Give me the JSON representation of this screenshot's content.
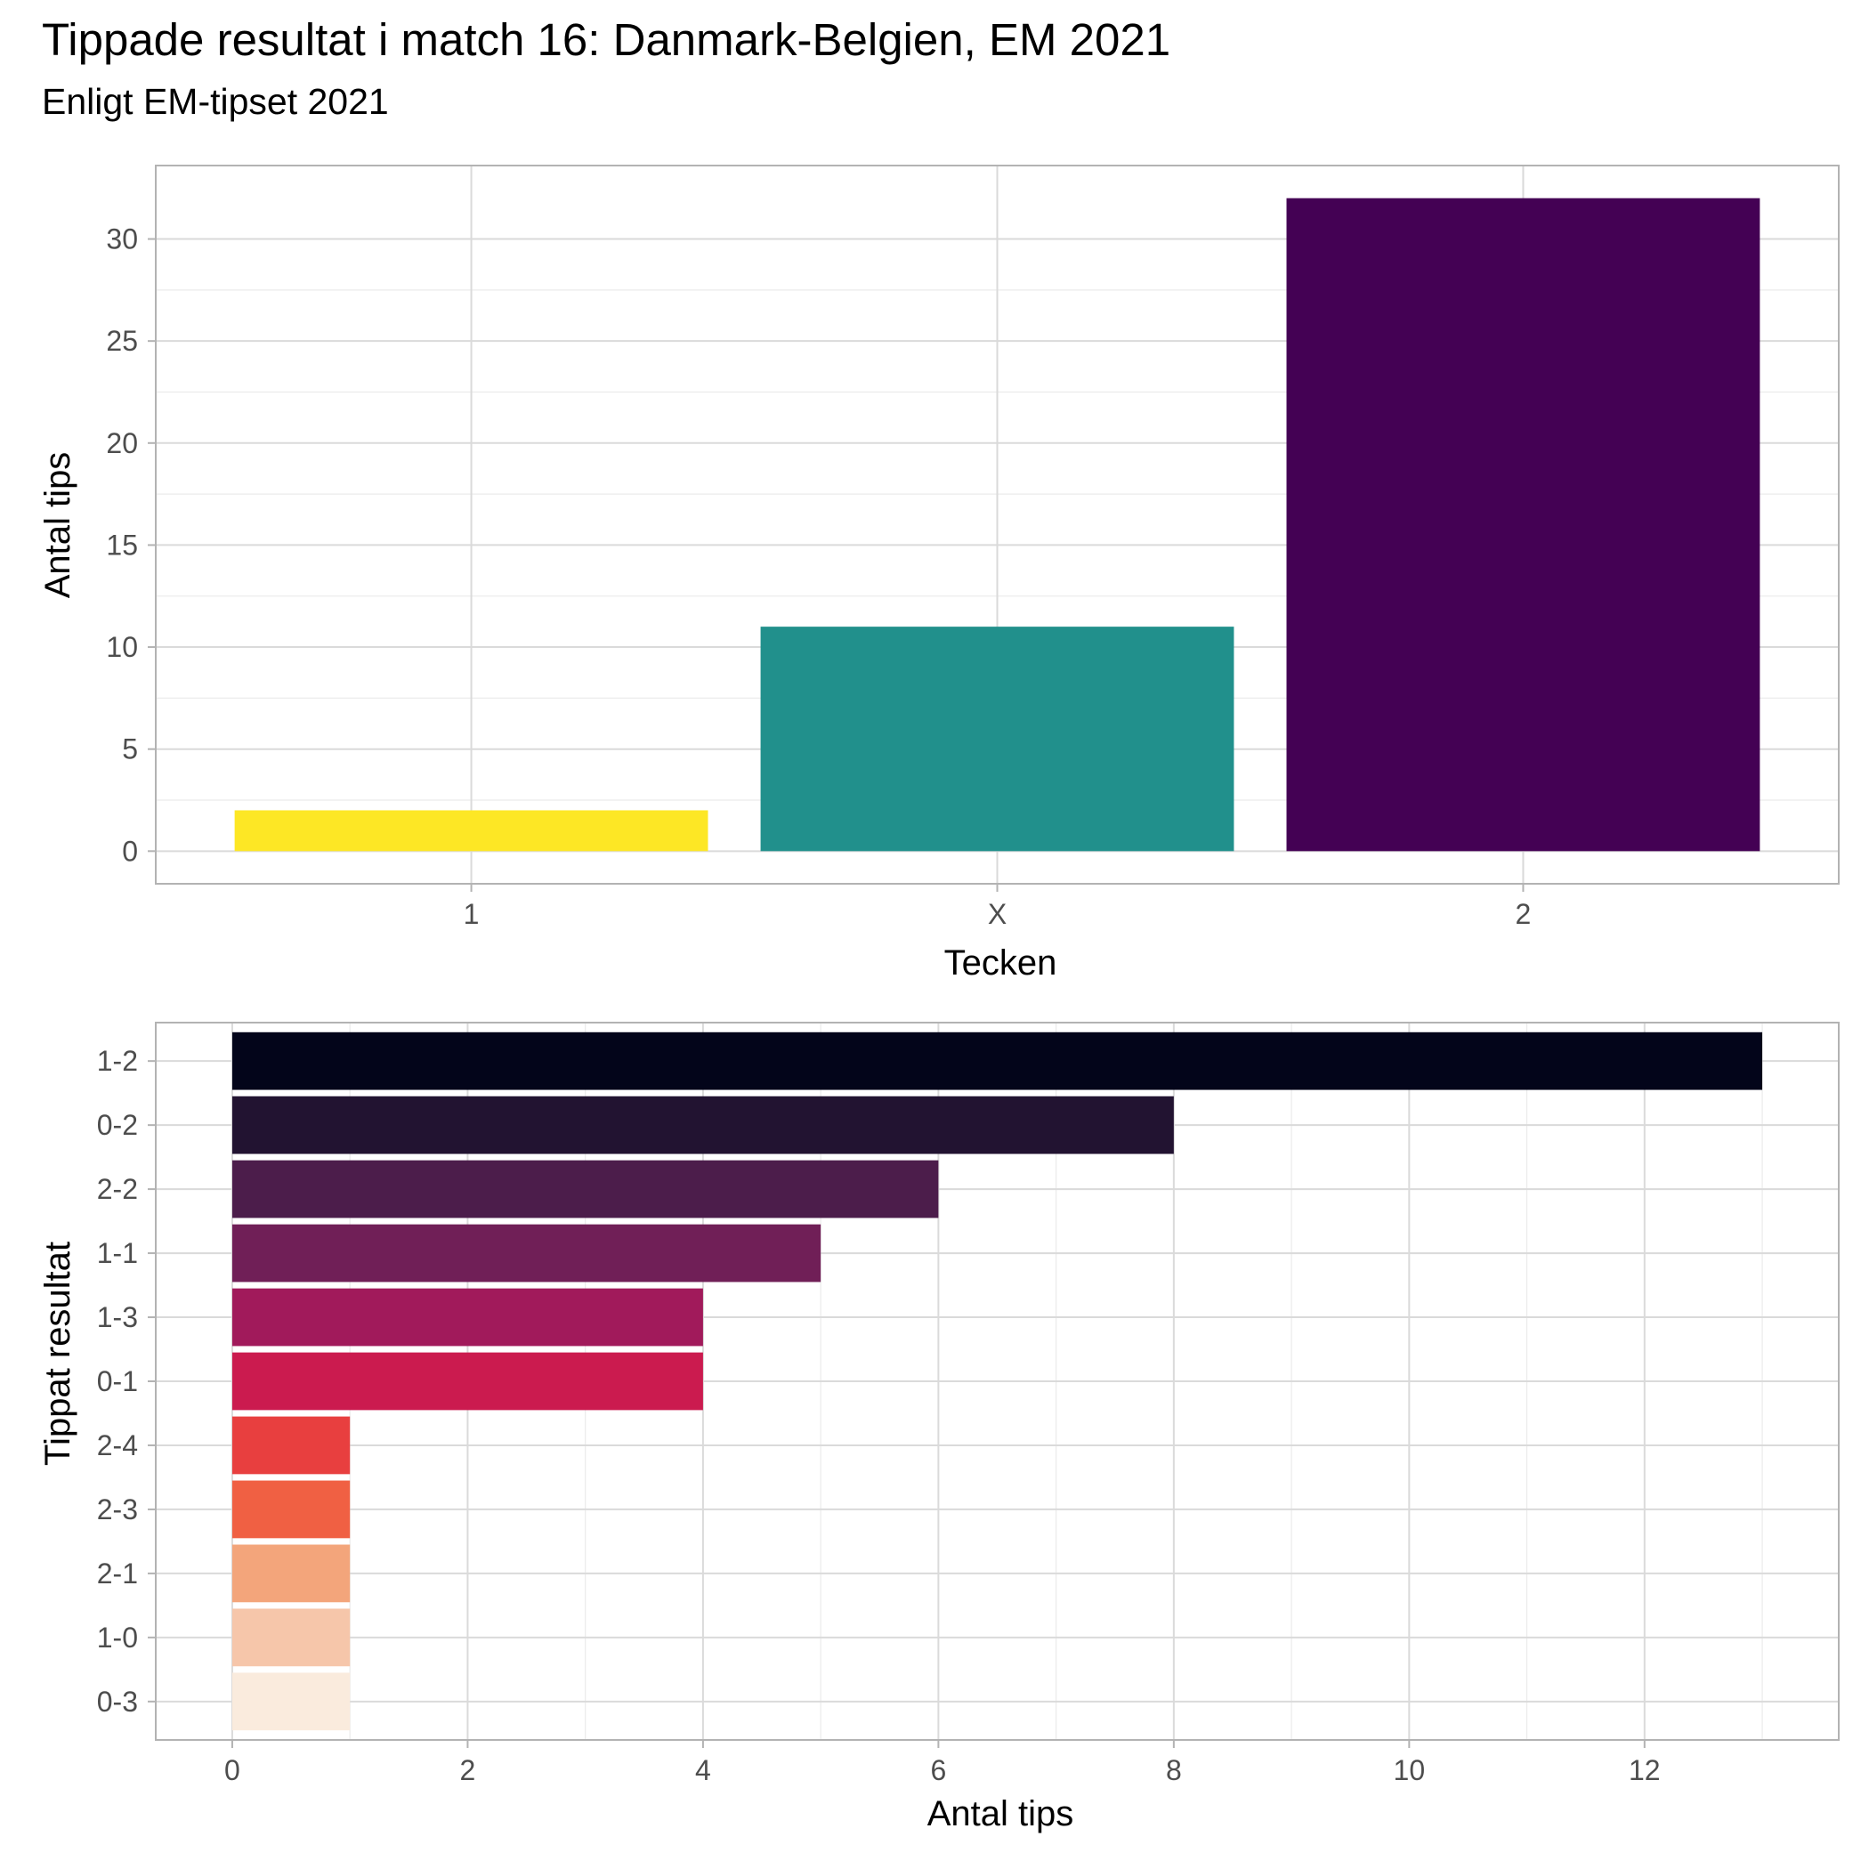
{
  "title": "Tippade resultat i match 16: Danmark-Belgien, EM 2021",
  "subtitle": "Enligt EM-tipset 2021",
  "chart_data": [
    {
      "type": "bar",
      "orientation": "vertical",
      "xlabel": "Tecken",
      "ylabel": "Antal tips",
      "categories": [
        "1",
        "X",
        "2"
      ],
      "values": [
        2,
        11,
        32
      ],
      "colors": [
        "#FDE725",
        "#21908C",
        "#440154"
      ],
      "ylim": [
        -1.6,
        33.6
      ],
      "yticks": [
        0,
        5,
        10,
        15,
        20,
        25,
        30
      ],
      "grid": true
    },
    {
      "type": "bar",
      "orientation": "horizontal",
      "xlabel": "Antal tips",
      "ylabel": "Tippat resultat",
      "categories": [
        "1-2",
        "0-2",
        "2-2",
        "1-1",
        "1-3",
        "0-1",
        "2-4",
        "2-3",
        "2-1",
        "1-0",
        "0-3"
      ],
      "values": [
        13,
        8,
        6,
        5,
        4,
        4,
        1,
        1,
        1,
        1,
        1
      ],
      "colors": [
        "#03051A",
        "#221331",
        "#4C1D4B",
        "#701F57",
        "#A11A5B",
        "#CB1B4F",
        "#E83F3F",
        "#F06043",
        "#F3A57B",
        "#F6C6AA",
        "#FAEBDD"
      ],
      "xlim": [
        -0.65,
        13.65
      ],
      "xticks": [
        0,
        2,
        4,
        6,
        8,
        10,
        12
      ],
      "grid": true
    }
  ]
}
